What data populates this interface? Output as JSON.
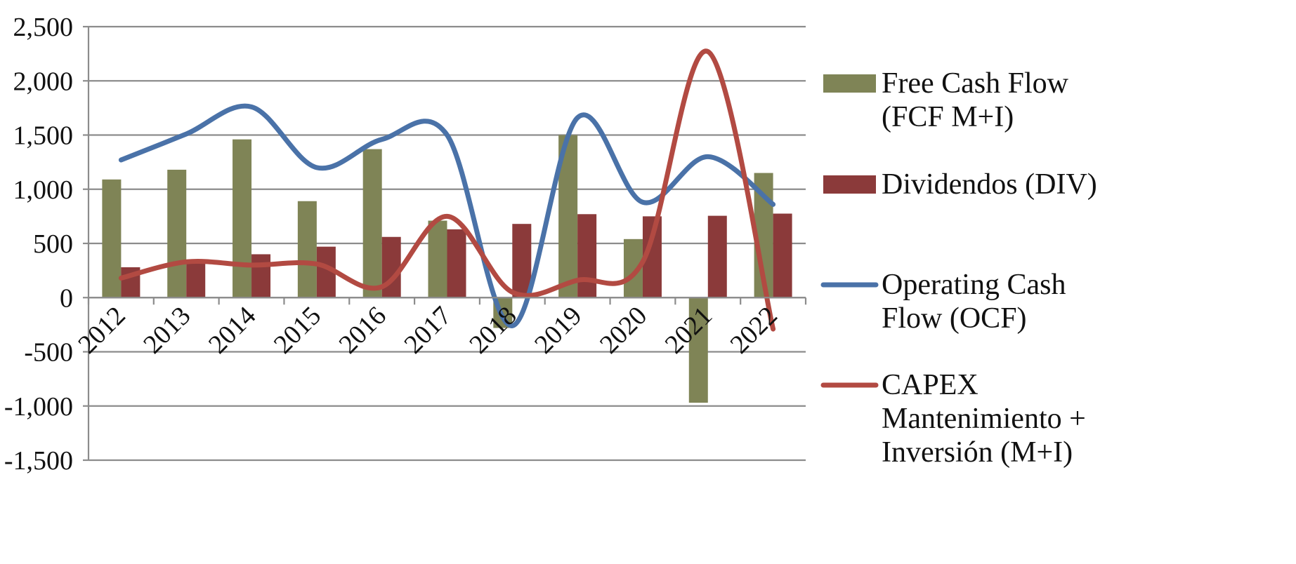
{
  "chart_data": {
    "type": "bar",
    "categories": [
      "2012",
      "2013",
      "2014",
      "2015",
      "2016",
      "2017",
      "2018",
      "2019",
      "2020",
      "2021",
      "2022"
    ],
    "ylim": [
      -1500,
      2500
    ],
    "yticks": [
      2500,
      2000,
      1500,
      1000,
      500,
      0,
      -500,
      -1000,
      -1500
    ],
    "ytick_labels": [
      "2,500",
      "2,000",
      "1,500",
      "1,000",
      "500",
      "0",
      "-500",
      "-1,000",
      "-1,500"
    ],
    "grid": true,
    "legend_position": "right",
    "series": [
      {
        "name": "Free Cash Flow (FCF M+I)",
        "legend_lines": [
          "Free Cash Flow",
          "(FCF M+I)"
        ],
        "kind": "bar",
        "color": "#7f8456",
        "values": [
          1090,
          1180,
          1460,
          890,
          1370,
          710,
          -280,
          1500,
          540,
          -970,
          1150
        ]
      },
      {
        "name": "Dividendos (DIV)",
        "legend_lines": [
          "Dividendos (DIV)"
        ],
        "kind": "bar",
        "color": "#8b3a3a",
        "values": [
          280,
          320,
          400,
          470,
          560,
          630,
          680,
          770,
          750,
          755,
          775
        ]
      },
      {
        "name": "Operating Cash Flow (OCF)",
        "legend_lines": [
          "Operating Cash",
          "Flow (OCF)"
        ],
        "kind": "line",
        "color": "#4a72a8",
        "values": [
          1270,
          1510,
          1760,
          1200,
          1460,
          1500,
          -260,
          1660,
          880,
          1300,
          860
        ]
      },
      {
        "name": "CAPEX Mantenimiento + Inversión (M+I)",
        "legend_lines": [
          "CAPEX",
          "Mantenimiento +",
          "Inversión (M+I)"
        ],
        "kind": "line",
        "color": "#b24a42",
        "values": [
          180,
          330,
          300,
          310,
          100,
          750,
          50,
          160,
          330,
          2270,
          -290
        ]
      }
    ]
  }
}
